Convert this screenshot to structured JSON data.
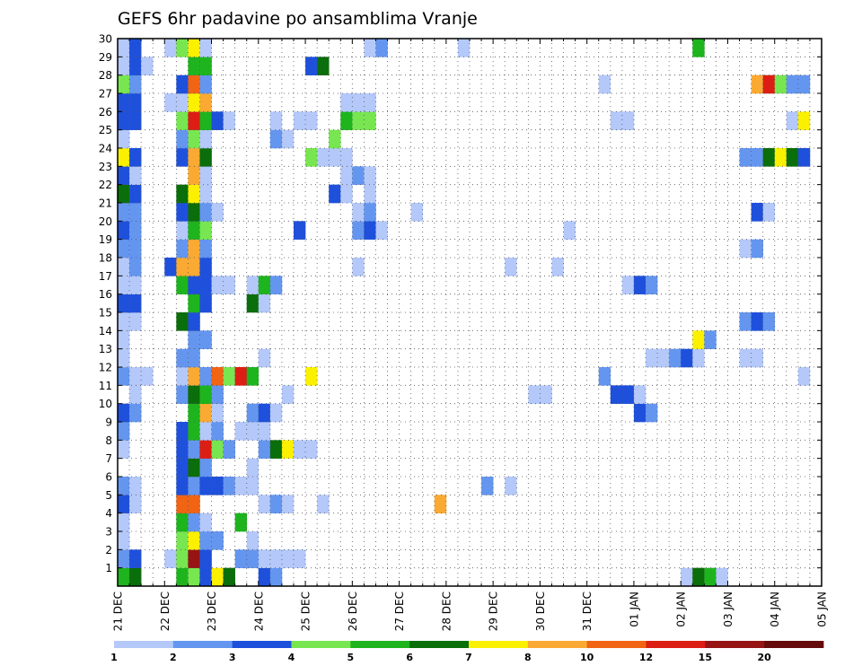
{
  "chart_data": {
    "type": "heatmap",
    "title": "GEFS 6hr padavine po ansamblima Vranje",
    "xlabel": "",
    "ylabel": "",
    "x_start": "2020-12-21T00:00",
    "x_end": "2021-01-05T00:00",
    "x_step_hours": 6,
    "x_tick_labels": [
      "21 DEC",
      "22 DEC",
      "23 DEC",
      "24 DEC",
      "25 DEC",
      "26 DEC",
      "27 DEC",
      "28 DEC",
      "29 DEC",
      "30 DEC",
      "31 DEC",
      "01 JAN",
      "02 JAN",
      "03 JAN",
      "04 JAN",
      "05 JAN"
    ],
    "ylim": [
      0,
      30
    ],
    "y_tick_labels": [
      "1",
      "2",
      "3",
      "4",
      "5",
      "6",
      "7",
      "8",
      "9",
      "10",
      "11",
      "12",
      "13",
      "14",
      "15",
      "16",
      "17",
      "18",
      "19",
      "20",
      "21",
      "22",
      "23",
      "24",
      "25",
      "26",
      "27",
      "28",
      "29",
      "30"
    ],
    "grid": true,
    "colorbar": {
      "placement": "bottom",
      "bounds": [
        1,
        2,
        3,
        4,
        5,
        6,
        7,
        8,
        10,
        12,
        15,
        20
      ],
      "labels": [
        "1",
        "2",
        "3",
        "4",
        "5",
        "6",
        "7",
        "8",
        "10",
        "12",
        "15",
        "20"
      ],
      "colors": [
        "#b4c8fa",
        "#6496f0",
        "#1e50dc",
        "#78e650",
        "#1eb41e",
        "#0a6e0a",
        "#faf000",
        "#faaa32",
        "#f06414",
        "#dc1e14",
        "#961414",
        "#640a0a"
      ]
    },
    "members": [
      {
        "member": 1,
        "cells": [
          [
            1,
            5
          ],
          [
            2,
            6
          ],
          [
            6,
            5
          ],
          [
            7,
            4
          ],
          [
            8,
            3
          ],
          [
            9,
            7
          ],
          [
            10,
            6
          ],
          [
            13,
            3
          ],
          [
            14,
            2
          ],
          [
            49,
            1
          ],
          [
            50,
            6
          ],
          [
            51,
            5
          ],
          [
            52,
            1
          ]
        ]
      },
      {
        "member": 2,
        "cells": [
          [
            1,
            2
          ],
          [
            2,
            3
          ],
          [
            5,
            1
          ],
          [
            6,
            4
          ],
          [
            7,
            11
          ],
          [
            8,
            3
          ],
          [
            11,
            2
          ],
          [
            12,
            2
          ],
          [
            13,
            1
          ],
          [
            14,
            1
          ],
          [
            15,
            1
          ],
          [
            16,
            1
          ]
        ]
      },
      {
        "member": 3,
        "cells": [
          [
            1,
            1
          ],
          [
            6,
            4
          ],
          [
            7,
            7
          ],
          [
            8,
            2
          ],
          [
            9,
            2
          ],
          [
            12,
            1
          ]
        ]
      },
      {
        "member": 4,
        "cells": [
          [
            1,
            1
          ],
          [
            6,
            5
          ],
          [
            7,
            2
          ],
          [
            8,
            1
          ],
          [
            11,
            5
          ]
        ]
      },
      {
        "member": 5,
        "cells": [
          [
            1,
            3
          ],
          [
            2,
            1
          ],
          [
            6,
            9
          ],
          [
            7,
            9
          ],
          [
            13,
            1
          ],
          [
            14,
            2
          ],
          [
            15,
            1
          ],
          [
            18,
            1
          ],
          [
            28,
            8
          ]
        ]
      },
      {
        "member": 6,
        "cells": [
          [
            1,
            2
          ],
          [
            2,
            1
          ],
          [
            6,
            3
          ],
          [
            7,
            2
          ],
          [
            8,
            3
          ],
          [
            9,
            3
          ],
          [
            10,
            2
          ],
          [
            11,
            1
          ],
          [
            12,
            1
          ],
          [
            32,
            2
          ],
          [
            34,
            1
          ]
        ]
      },
      {
        "member": 7,
        "cells": [
          [
            6,
            3
          ],
          [
            7,
            6
          ],
          [
            8,
            2
          ],
          [
            12,
            1
          ]
        ]
      },
      {
        "member": 8,
        "cells": [
          [
            1,
            1
          ],
          [
            6,
            3
          ],
          [
            7,
            2
          ],
          [
            8,
            10
          ],
          [
            9,
            4
          ],
          [
            10,
            2
          ],
          [
            13,
            2
          ],
          [
            14,
            6
          ],
          [
            15,
            7
          ],
          [
            16,
            1
          ],
          [
            17,
            1
          ]
        ]
      },
      {
        "member": 9,
        "cells": [
          [
            1,
            2
          ],
          [
            6,
            3
          ],
          [
            7,
            5
          ],
          [
            8,
            1
          ],
          [
            9,
            2
          ],
          [
            11,
            1
          ],
          [
            12,
            1
          ],
          [
            13,
            1
          ]
        ]
      },
      {
        "member": 10,
        "cells": [
          [
            1,
            3
          ],
          [
            2,
            2
          ],
          [
            7,
            5
          ],
          [
            8,
            8
          ],
          [
            9,
            1
          ],
          [
            12,
            2
          ],
          [
            13,
            3
          ],
          [
            14,
            1
          ],
          [
            45,
            3
          ],
          [
            46,
            2
          ]
        ]
      },
      {
        "member": 11,
        "cells": [
          [
            2,
            1
          ],
          [
            6,
            2
          ],
          [
            7,
            6
          ],
          [
            8,
            5
          ],
          [
            9,
            2
          ],
          [
            15,
            1
          ],
          [
            36,
            1
          ],
          [
            37,
            1
          ],
          [
            43,
            3
          ],
          [
            44,
            3
          ],
          [
            45,
            1
          ]
        ]
      },
      {
        "member": 12,
        "cells": [
          [
            1,
            2
          ],
          [
            2,
            1
          ],
          [
            3,
            1
          ],
          [
            6,
            1
          ],
          [
            7,
            8
          ],
          [
            8,
            2
          ],
          [
            9,
            9
          ],
          [
            10,
            4
          ],
          [
            11,
            10
          ],
          [
            12,
            5
          ],
          [
            17,
            7
          ],
          [
            42,
            2
          ],
          [
            59,
            1
          ]
        ]
      },
      {
        "member": 13,
        "cells": [
          [
            1,
            1
          ],
          [
            6,
            2
          ],
          [
            7,
            2
          ],
          [
            13,
            1
          ],
          [
            46,
            1
          ],
          [
            47,
            1
          ],
          [
            48,
            2
          ],
          [
            49,
            3
          ],
          [
            50,
            1
          ],
          [
            54,
            1
          ],
          [
            55,
            1
          ]
        ]
      },
      {
        "member": 14,
        "cells": [
          [
            1,
            1
          ],
          [
            7,
            2
          ],
          [
            8,
            2
          ],
          [
            50,
            7
          ],
          [
            51,
            2
          ]
        ]
      },
      {
        "member": 15,
        "cells": [
          [
            1,
            1
          ],
          [
            2,
            1
          ],
          [
            6,
            6
          ],
          [
            7,
            3
          ],
          [
            54,
            2
          ],
          [
            55,
            3
          ],
          [
            56,
            2
          ]
        ]
      },
      {
        "member": 16,
        "cells": [
          [
            1,
            3
          ],
          [
            2,
            3
          ],
          [
            7,
            5
          ],
          [
            8,
            3
          ],
          [
            12,
            6
          ],
          [
            13,
            1
          ]
        ]
      },
      {
        "member": 17,
        "cells": [
          [
            1,
            1
          ],
          [
            2,
            1
          ],
          [
            6,
            5
          ],
          [
            7,
            3
          ],
          [
            8,
            3
          ],
          [
            9,
            1
          ],
          [
            10,
            1
          ],
          [
            12,
            1
          ],
          [
            13,
            5
          ],
          [
            14,
            2
          ],
          [
            44,
            1
          ],
          [
            45,
            3
          ],
          [
            46,
            2
          ]
        ]
      },
      {
        "member": 18,
        "cells": [
          [
            1,
            1
          ],
          [
            2,
            2
          ],
          [
            5,
            3
          ],
          [
            6,
            8
          ],
          [
            7,
            8
          ],
          [
            8,
            3
          ],
          [
            21,
            1
          ],
          [
            34,
            1
          ],
          [
            38,
            1
          ]
        ]
      },
      {
        "member": 19,
        "cells": [
          [
            1,
            2
          ],
          [
            2,
            2
          ],
          [
            6,
            2
          ],
          [
            7,
            8
          ],
          [
            8,
            2
          ],
          [
            54,
            1
          ],
          [
            55,
            2
          ]
        ]
      },
      {
        "member": 20,
        "cells": [
          [
            1,
            3
          ],
          [
            2,
            2
          ],
          [
            6,
            1
          ],
          [
            7,
            5
          ],
          [
            8,
            4
          ],
          [
            16,
            3
          ],
          [
            21,
            2
          ],
          [
            22,
            3
          ],
          [
            23,
            1
          ],
          [
            39,
            1
          ]
        ]
      },
      {
        "member": 21,
        "cells": [
          [
            1,
            2
          ],
          [
            2,
            2
          ],
          [
            6,
            3
          ],
          [
            7,
            6
          ],
          [
            8,
            2
          ],
          [
            9,
            1
          ],
          [
            21,
            1
          ],
          [
            22,
            2
          ],
          [
            26,
            1
          ],
          [
            55,
            3
          ],
          [
            56,
            1
          ]
        ]
      },
      {
        "member": 22,
        "cells": [
          [
            1,
            6
          ],
          [
            2,
            3
          ],
          [
            6,
            6
          ],
          [
            7,
            7
          ],
          [
            8,
            1
          ],
          [
            19,
            3
          ],
          [
            20,
            1
          ],
          [
            22,
            1
          ]
        ]
      },
      {
        "member": 23,
        "cells": [
          [
            1,
            3
          ],
          [
            2,
            1
          ],
          [
            7,
            8
          ],
          [
            8,
            1
          ],
          [
            20,
            1
          ],
          [
            21,
            2
          ],
          [
            22,
            1
          ]
        ]
      },
      {
        "member": 24,
        "cells": [
          [
            1,
            7
          ],
          [
            2,
            3
          ],
          [
            6,
            3
          ],
          [
            7,
            8
          ],
          [
            8,
            6
          ],
          [
            17,
            4
          ],
          [
            18,
            1
          ],
          [
            19,
            1
          ],
          [
            20,
            1
          ],
          [
            54,
            2
          ],
          [
            55,
            2
          ],
          [
            56,
            6
          ],
          [
            57,
            7
          ],
          [
            58,
            6
          ],
          [
            59,
            3
          ]
        ]
      },
      {
        "member": 25,
        "cells": [
          [
            1,
            1
          ],
          [
            6,
            2
          ],
          [
            7,
            4
          ],
          [
            8,
            1
          ],
          [
            14,
            2
          ],
          [
            15,
            1
          ],
          [
            19,
            4
          ]
        ]
      },
      {
        "member": 26,
        "cells": [
          [
            1,
            3
          ],
          [
            2,
            3
          ],
          [
            6,
            4
          ],
          [
            7,
            10
          ],
          [
            8,
            5
          ],
          [
            9,
            3
          ],
          [
            10,
            1
          ],
          [
            14,
            1
          ],
          [
            16,
            1
          ],
          [
            17,
            1
          ],
          [
            20,
            5
          ],
          [
            21,
            4
          ],
          [
            22,
            4
          ],
          [
            43,
            1
          ],
          [
            44,
            1
          ],
          [
            58,
            1
          ],
          [
            59,
            7
          ]
        ]
      },
      {
        "member": 27,
        "cells": [
          [
            1,
            3
          ],
          [
            2,
            3
          ],
          [
            5,
            1
          ],
          [
            6,
            1
          ],
          [
            7,
            7
          ],
          [
            8,
            8
          ],
          [
            20,
            1
          ],
          [
            21,
            1
          ],
          [
            22,
            1
          ]
        ]
      },
      {
        "member": 28,
        "cells": [
          [
            1,
            4
          ],
          [
            2,
            2
          ],
          [
            6,
            3
          ],
          [
            7,
            9
          ],
          [
            8,
            2
          ],
          [
            42,
            1
          ],
          [
            55,
            8
          ],
          [
            56,
            10
          ],
          [
            57,
            4
          ],
          [
            58,
            2
          ],
          [
            59,
            2
          ]
        ]
      },
      {
        "member": 29,
        "cells": [
          [
            1,
            1
          ],
          [
            2,
            3
          ],
          [
            3,
            1
          ],
          [
            7,
            5
          ],
          [
            8,
            5
          ],
          [
            17,
            3
          ],
          [
            18,
            6
          ]
        ]
      },
      {
        "member": 30,
        "cells": [
          [
            1,
            1
          ],
          [
            2,
            3
          ],
          [
            5,
            1
          ],
          [
            6,
            4
          ],
          [
            7,
            7
          ],
          [
            8,
            1
          ],
          [
            22,
            1
          ],
          [
            23,
            2
          ],
          [
            30,
            1
          ],
          [
            50,
            5
          ]
        ]
      }
    ]
  }
}
